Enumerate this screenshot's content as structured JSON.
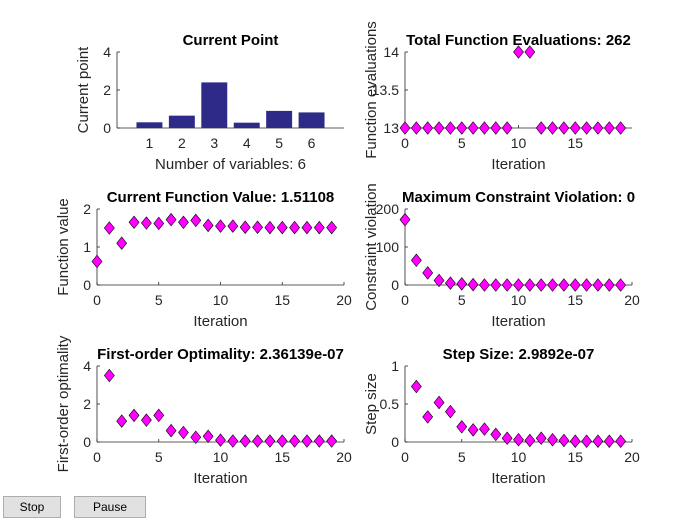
{
  "controls": {
    "stop_label": "Stop",
    "pause_label": "Pause"
  },
  "colors": {
    "bar": "#2e2a87",
    "marker": "#ff00ff",
    "marker_edge": "#000000"
  },
  "chart_data": [
    {
      "id": "current-point",
      "type": "bar",
      "title": "Current Point",
      "xlabel": "Number of variables: 6",
      "ylabel": "Current point",
      "categories": [
        "1",
        "2",
        "3",
        "4",
        "5",
        "6"
      ],
      "values": [
        0.3,
        0.65,
        2.4,
        0.28,
        0.9,
        0.82
      ],
      "xlim": [
        0,
        7
      ],
      "ylim": [
        0,
        4
      ],
      "yticks": [
        0,
        2,
        4
      ]
    },
    {
      "id": "function-evaluations",
      "type": "scatter",
      "title": "Total Function Evaluations: 262",
      "xlabel": "Iteration",
      "ylabel": "Function evaluations",
      "x": [
        0,
        1,
        2,
        3,
        4,
        5,
        6,
        7,
        8,
        9,
        10,
        11,
        12,
        13,
        14,
        15,
        16,
        17,
        18,
        19
      ],
      "y": [
        13,
        13,
        13,
        13,
        13,
        13,
        13,
        13,
        13,
        13,
        14,
        14,
        13,
        13,
        13,
        13,
        13,
        13,
        13,
        13
      ],
      "xlim": [
        0,
        20
      ],
      "ylim": [
        13,
        14
      ],
      "xticks": [
        0,
        5,
        10,
        15
      ],
      "yticks": [
        13,
        13.5,
        14
      ]
    },
    {
      "id": "function-value",
      "type": "scatter",
      "title": "Current Function Value: 1.51108",
      "xlabel": "Iteration",
      "ylabel": "Function value",
      "x": [
        0,
        1,
        2,
        3,
        4,
        5,
        6,
        7,
        8,
        9,
        10,
        11,
        12,
        13,
        14,
        15,
        16,
        17,
        18,
        19
      ],
      "y": [
        0.62,
        1.5,
        1.1,
        1.65,
        1.63,
        1.62,
        1.72,
        1.65,
        1.7,
        1.57,
        1.55,
        1.55,
        1.52,
        1.52,
        1.51,
        1.51,
        1.51,
        1.51,
        1.51,
        1.51
      ],
      "xlim": [
        0,
        20
      ],
      "ylim": [
        0,
        2
      ],
      "xticks": [
        0,
        5,
        10,
        15,
        20
      ],
      "yticks": [
        0,
        1,
        2
      ]
    },
    {
      "id": "constraint-violation",
      "type": "scatter",
      "title": "Maximum Constraint Violation: 0",
      "xlabel": "Iteration",
      "ylabel": "Constraint violation",
      "x": [
        0,
        1,
        2,
        3,
        4,
        5,
        6,
        7,
        8,
        9,
        10,
        11,
        12,
        13,
        14,
        15,
        16,
        17,
        18,
        19
      ],
      "y": [
        172,
        65,
        32,
        12,
        5,
        3,
        1,
        0,
        0,
        0,
        0,
        0,
        0,
        0,
        0,
        0,
        0,
        0,
        0,
        0
      ],
      "xlim": [
        0,
        20
      ],
      "ylim": [
        0,
        200
      ],
      "xticks": [
        0,
        5,
        10,
        15,
        20
      ],
      "yticks": [
        0,
        100,
        200
      ]
    },
    {
      "id": "first-order-optimality",
      "type": "scatter",
      "title": "First-order Optimality: 2.36139e-07",
      "xlabel": "Iteration",
      "ylabel": "First-order optimality",
      "x": [
        1,
        2,
        3,
        4,
        5,
        6,
        7,
        8,
        9,
        10,
        11,
        12,
        13,
        14,
        15,
        16,
        17,
        18,
        19
      ],
      "y": [
        3.5,
        1.1,
        1.4,
        1.15,
        1.4,
        0.6,
        0.5,
        0.25,
        0.3,
        0.1,
        0.05,
        0.05,
        0.05,
        0.05,
        0.05,
        0.05,
        0.05,
        0.05,
        0.05
      ],
      "xlim": [
        0,
        20
      ],
      "ylim": [
        0,
        4
      ],
      "xticks": [
        0,
        5,
        10,
        15,
        20
      ],
      "yticks": [
        0,
        2,
        4
      ]
    },
    {
      "id": "step-size",
      "type": "scatter",
      "title": "Step Size: 2.9892e-07",
      "xlabel": "Iteration",
      "ylabel": "Step size",
      "x": [
        1,
        2,
        3,
        4,
        5,
        6,
        7,
        8,
        9,
        10,
        11,
        12,
        13,
        14,
        15,
        16,
        17,
        18,
        19
      ],
      "y": [
        0.73,
        0.33,
        0.52,
        0.4,
        0.2,
        0.16,
        0.17,
        0.1,
        0.05,
        0.03,
        0.02,
        0.05,
        0.03,
        0.02,
        0.01,
        0.01,
        0.01,
        0.01,
        0.01
      ],
      "xlim": [
        0,
        20
      ],
      "ylim": [
        0,
        1
      ],
      "xticks": [
        0,
        5,
        10,
        15,
        20
      ],
      "yticks": [
        0,
        0.5,
        1
      ]
    }
  ]
}
